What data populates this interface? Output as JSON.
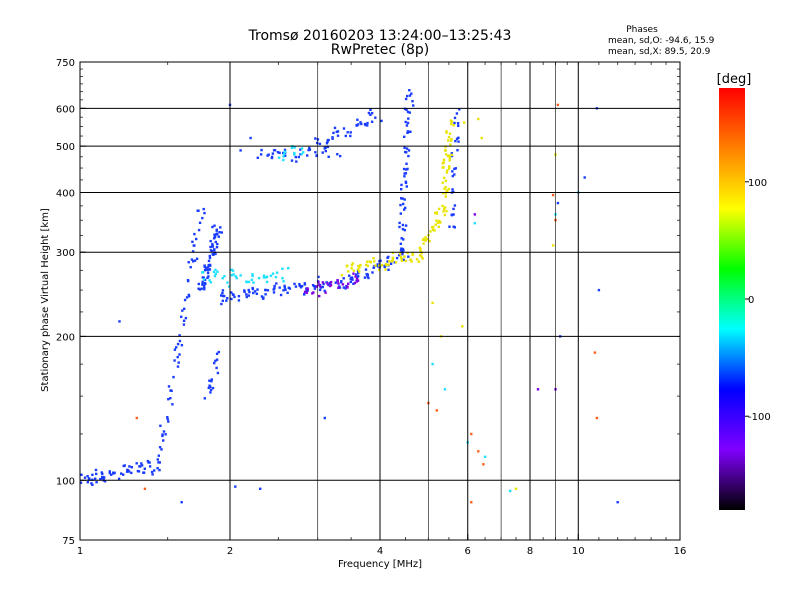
{
  "chart_data": {
    "type": "scatter",
    "title": "Tromsø 20160203 13:24:00–13:25:43",
    "subtitle": "RwPretec (8p)",
    "xlabel": "Frequency [MHz]",
    "ylabel": "Stationary phase Virtual Height [km]",
    "x_scale": "log",
    "y_scale": "log",
    "xlim": [
      1,
      16
    ],
    "ylim": [
      75,
      750
    ],
    "x_ticks": [
      1,
      2,
      4,
      6,
      8,
      10,
      16
    ],
    "x_tick_labels": [
      "1",
      "2",
      "4",
      "6",
      "8",
      "10",
      "16"
    ],
    "x_minor_ticks": [
      3,
      5,
      7,
      9
    ],
    "y_ticks": [
      75,
      100,
      200,
      300,
      400,
      500,
      600,
      750
    ],
    "y_tick_labels": [
      "75",
      "100",
      "200",
      "300",
      "400",
      "500",
      "600",
      "750"
    ],
    "grid": true,
    "stats": {
      "title": "Phases",
      "line1": "mean, sd,O: -94.6, 15.9",
      "line2": "mean, sd,X:  89.5, 20.9"
    },
    "colorbar": {
      "label": "[deg]",
      "range": [
        -180,
        180
      ],
      "ticks": [
        100,
        0,
        -100
      ],
      "tick_labels": [
        "100",
        "0",
        "-100"
      ],
      "colors": [
        "#ff0000",
        "#ff8000",
        "#ffff00",
        "#00ff00",
        "#00ffff",
        "#0000ff",
        "#8000ff",
        "#000000"
      ]
    },
    "series": [
      {
        "phase": -95,
        "color": "#1a3cff",
        "traces": [
          [
            1.0,
            100,
            1.45,
            108,
            45
          ],
          [
            1.45,
            112,
            1.55,
            160,
            12
          ],
          [
            1.55,
            170,
            1.65,
            250,
            14
          ],
          [
            1.65,
            260,
            1.75,
            370,
            14
          ],
          [
            1.75,
            250,
            1.9,
            340,
            40
          ],
          [
            1.8,
            150,
            1.9,
            180,
            12
          ],
          [
            1.9,
            240,
            3.5,
            260,
            60
          ],
          [
            3.5,
            262,
            4.5,
            300,
            30
          ],
          [
            4.4,
            300,
            4.6,
            650,
            40
          ],
          [
            5.55,
            330,
            5.7,
            600,
            20
          ],
          [
            2.3,
            475,
            3.3,
            490,
            25
          ],
          [
            3.0,
            500,
            4.0,
            580,
            25
          ]
        ],
        "points": [
          [
            1.2,
            215
          ],
          [
            2.0,
            610
          ],
          [
            2.2,
            520
          ],
          [
            2.1,
            490
          ],
          [
            3.1,
            135
          ],
          [
            1.45,
            130
          ],
          [
            1.6,
            90
          ],
          [
            2.05,
            97
          ],
          [
            2.3,
            96
          ],
          [
            10.9,
            600
          ],
          [
            11.0,
            250
          ],
          [
            12.0,
            90
          ],
          [
            9.1,
            380
          ],
          [
            9.2,
            200
          ],
          [
            10.3,
            430
          ]
        ]
      },
      {
        "phase": 90,
        "color": "#e8e400",
        "traces": [
          [
            3.4,
            275,
            4.8,
            295,
            35
          ],
          [
            4.8,
            300,
            5.4,
            380,
            20
          ],
          [
            5.35,
            380,
            5.55,
            560,
            25
          ]
        ],
        "points": [
          [
            5.1,
            235
          ],
          [
            5.3,
            200
          ],
          [
            6.3,
            570
          ],
          [
            6.4,
            520
          ],
          [
            9.0,
            480
          ],
          [
            8.9,
            310
          ],
          [
            7.5,
            96
          ],
          [
            5.85,
            210
          ],
          [
            5.9,
            560
          ]
        ]
      },
      {
        "phase": 30,
        "color": "#20e0ff",
        "traces": [
          [
            1.75,
            265,
            2.6,
            270,
            25
          ],
          [
            2.5,
            480,
            2.8,
            495,
            10
          ]
        ],
        "points": [
          [
            5.1,
            175
          ],
          [
            5.4,
            155
          ],
          [
            6.0,
            120
          ],
          [
            6.5,
            112
          ],
          [
            9.0,
            360
          ],
          [
            7.3,
            95
          ],
          [
            10.0,
            400
          ],
          [
            6.2,
            345
          ]
        ]
      },
      {
        "phase": 150,
        "color": "#ff6020",
        "points": [
          [
            1.3,
            135
          ],
          [
            1.35,
            96
          ],
          [
            5.0,
            145
          ],
          [
            5.2,
            140
          ],
          [
            6.1,
            125
          ],
          [
            6.3,
            115
          ],
          [
            6.45,
            108
          ],
          [
            9.1,
            610
          ],
          [
            8.9,
            395
          ],
          [
            9.0,
            350
          ],
          [
            10.8,
            185
          ],
          [
            10.9,
            135
          ],
          [
            6.1,
            90
          ]
        ]
      },
      {
        "phase": -140,
        "color": "#8000e0",
        "traces": [
          [
            2.8,
            245,
            3.6,
            265,
            20
          ]
        ],
        "points": [
          [
            6.2,
            360
          ],
          [
            8.3,
            155
          ],
          [
            9.0,
            155
          ]
        ]
      }
    ]
  }
}
